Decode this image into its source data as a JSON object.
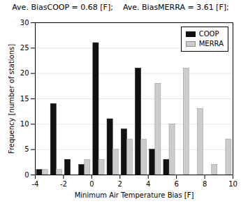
{
  "chart_data": {
    "type": "bar",
    "title": "Ave. BiasCOOP = 0.68 [F];    Ave. BiasMERRA = 3.61 [F];",
    "xlabel": "Minimum Air Temperature Bias [F]",
    "ylabel": "Frequency [number of stations]",
    "xlim": [
      -4,
      10
    ],
    "ylim": [
      0,
      30
    ],
    "xticks": [
      -4,
      -2,
      0,
      2,
      4,
      6,
      8,
      10
    ],
    "yticks": [
      0,
      5,
      10,
      15,
      20,
      25,
      30
    ],
    "grid": true,
    "legend": "upper right",
    "series": [
      {
        "name": "COOP",
        "color": "#111111",
        "x": [
          -3.5,
          -2.5,
          -1.5,
          -0.5,
          0.5,
          1.5,
          2.5,
          3.5,
          4.5,
          5.5
        ],
        "values": [
          1,
          14,
          3,
          2,
          26,
          11,
          9,
          21,
          5,
          3
        ]
      },
      {
        "name": "MERRA",
        "color": "#cccccc",
        "x": [
          -3.5,
          -2.5,
          -1.5,
          -0.5,
          0.5,
          1.5,
          2.5,
          3.5,
          4.5,
          5.5,
          6.5,
          7.5,
          8.5,
          9.5
        ],
        "values": [
          1,
          1,
          0,
          3,
          3,
          5,
          7,
          7,
          18,
          10,
          21,
          13,
          2,
          7
        ]
      }
    ]
  }
}
